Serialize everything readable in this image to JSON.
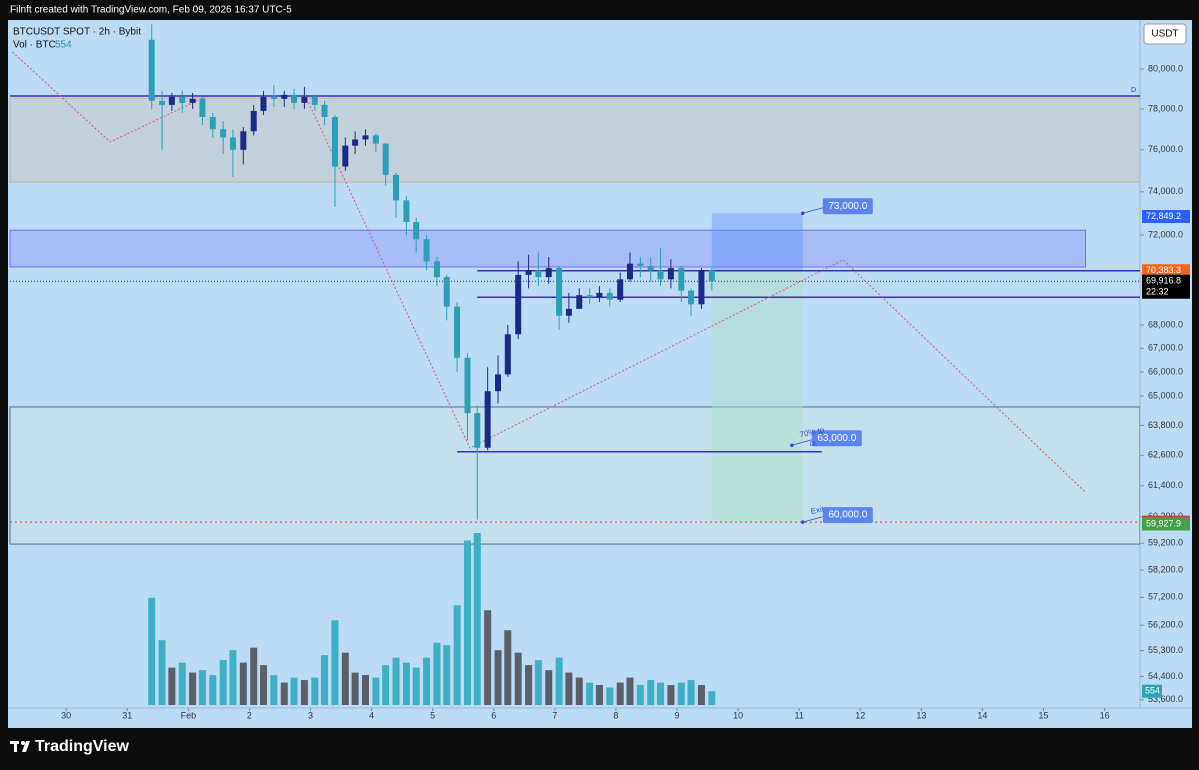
{
  "header": {
    "attribution": "Filnft created with TradingView.com, Feb 09, 2026 16:37 UTC-5",
    "symbol": "BTCUSDT SPOT · 2h · Bybit",
    "volume_label": "Vol · BTC",
    "currency": "USDT"
  },
  "footer": {
    "brand": "TradingView"
  },
  "chart_data": {
    "type": "candlestick",
    "log_scale": true,
    "xlim": [
      29.08,
      47.58
    ],
    "ylim": [
      53320,
      82530
    ],
    "xticks": [
      30,
      31,
      {
        "value": 32,
        "label": "Feb"
      },
      {
        "value": 33,
        "label": "2"
      },
      {
        "value": 34,
        "label": "3"
      },
      {
        "value": 35,
        "label": "4"
      },
      {
        "value": 36,
        "label": "5"
      },
      {
        "value": 37,
        "label": "6"
      },
      {
        "value": 38,
        "label": "7"
      },
      {
        "value": 39,
        "label": "8"
      },
      {
        "value": 40,
        "label": "9"
      },
      {
        "value": 41,
        "label": "10"
      },
      {
        "value": 42,
        "label": "11"
      },
      {
        "value": 43,
        "label": "12"
      },
      {
        "value": 44,
        "label": "13"
      },
      {
        "value": 45,
        "label": "14"
      },
      {
        "value": 46,
        "label": "15"
      },
      {
        "value": 47,
        "label": "16"
      }
    ],
    "yticks": [
      {
        "value": 80000,
        "label": "80,000.0"
      },
      {
        "value": 78000,
        "label": "78,000.0"
      },
      {
        "value": 76000,
        "label": "76,000.0"
      },
      {
        "value": 74000,
        "label": "74,000.0"
      },
      {
        "value": 72000,
        "label": "72,000.0"
      },
      {
        "value": 68000,
        "label": "68,000.0"
      },
      {
        "value": 67000,
        "label": "67,000.0"
      },
      {
        "value": 66000,
        "label": "66,000.0"
      },
      {
        "value": 65000,
        "label": "65,000.0"
      },
      {
        "value": 63800,
        "label": "63,800.0"
      },
      {
        "value": 62600,
        "label": "62,600.0"
      },
      {
        "value": 61400,
        "label": "61,400.0"
      },
      {
        "value": 60200,
        "label": "60,200.0"
      },
      {
        "value": 59200,
        "label": "59,200.0"
      },
      {
        "value": 58200,
        "label": "58,200.0"
      },
      {
        "value": 57200,
        "label": "57,200.0"
      },
      {
        "value": 56200,
        "label": "56,200.0"
      },
      {
        "value": 55300,
        "label": "55,300.0"
      },
      {
        "value": 54400,
        "label": "54,400.0"
      },
      {
        "value": 53600,
        "label": "53,600.0"
      }
    ],
    "up_color": "#1b2a86",
    "down_color": "#2a9fb5",
    "volume_up_color": "#5a5f68",
    "volume_down_color": "#3fb0c4",
    "x": [
      31.4,
      31.57,
      31.73,
      31.9,
      32.07,
      32.23,
      32.4,
      32.57,
      32.73,
      32.9,
      33.07,
      33.23,
      33.4,
      33.57,
      33.73,
      33.9,
      34.07,
      34.23,
      34.4,
      34.57,
      34.73,
      34.9,
      35.07,
      35.23,
      35.4,
      35.57,
      35.73,
      35.9,
      36.07,
      36.23,
      36.4,
      36.57,
      36.73,
      36.9,
      37.07,
      37.23,
      37.4,
      37.57,
      37.73,
      37.9,
      38.07,
      38.23,
      38.4,
      38.57,
      38.73,
      38.9,
      39.07,
      39.23,
      39.4,
      39.57,
      39.73,
      39.9,
      40.07,
      40.23,
      40.4,
      40.57
    ],
    "open": [
      81500,
      78400,
      78200,
      78600,
      78300,
      78500,
      77600,
      77000,
      76600,
      76000,
      76900,
      77900,
      78600,
      78500,
      78700,
      78300,
      78600,
      78200,
      77600,
      75200,
      76200,
      76500,
      76700,
      76300,
      74800,
      73600,
      72600,
      71800,
      70800,
      70100,
      68800,
      66600,
      64300,
      62900,
      65200,
      65900,
      67600,
      70200,
      70400,
      70100,
      70500,
      68400,
      68700,
      69300,
      69200,
      69400,
      69100,
      70000,
      70700,
      70600,
      70400,
      70000,
      70500,
      69500,
      68900,
      70400
    ],
    "high": [
      82300,
      78900,
      78800,
      78900,
      78800,
      78600,
      77800,
      77400,
      77000,
      77100,
      78200,
      78900,
      79200,
      78900,
      79000,
      79100,
      78700,
      78400,
      77700,
      76600,
      76900,
      77000,
      76800,
      76300,
      74900,
      73800,
      72800,
      72000,
      71000,
      70200,
      69000,
      66800,
      64600,
      66200,
      66700,
      68000,
      70800,
      71100,
      71200,
      71000,
      70600,
      69400,
      69600,
      69600,
      69700,
      69600,
      70300,
      71200,
      71000,
      71000,
      71400,
      70900,
      70600,
      69600,
      70500,
      70500
    ],
    "low": [
      78000,
      76000,
      77900,
      77800,
      78000,
      77200,
      76600,
      75800,
      74700,
      75300,
      76700,
      77700,
      78100,
      78100,
      78000,
      78000,
      77900,
      77200,
      73300,
      75000,
      75800,
      76200,
      75900,
      74300,
      72800,
      72000,
      71200,
      70400,
      69700,
      68200,
      66000,
      63200,
      60100,
      62800,
      64700,
      65800,
      67400,
      69600,
      69700,
      69800,
      67800,
      68100,
      68700,
      68900,
      69000,
      68800,
      69000,
      69900,
      70100,
      69900,
      69700,
      69600,
      69000,
      68400,
      68700,
      69500
    ],
    "close": [
      78400,
      78200,
      78600,
      78300,
      78500,
      77600,
      77000,
      76600,
      76000,
      76900,
      77900,
      78600,
      78500,
      78700,
      78300,
      78600,
      78200,
      77600,
      75200,
      76200,
      76500,
      76700,
      76300,
      74800,
      73600,
      72600,
      71800,
      70800,
      70100,
      68800,
      66600,
      64300,
      62900,
      65200,
      65900,
      67600,
      70200,
      70400,
      70100,
      70500,
      68400,
      68700,
      69300,
      69200,
      69400,
      69100,
      70000,
      70700,
      70600,
      70400,
      70000,
      70500,
      69500,
      68900,
      70400,
      69916.8
    ],
    "volume": [
      4300,
      2600,
      1500,
      1700,
      1300,
      1400,
      1200,
      1800,
      2200,
      1700,
      2300,
      1600,
      1200,
      900,
      1100,
      1000,
      1100,
      2000,
      3400,
      2100,
      1300,
      1200,
      1100,
      1600,
      1900,
      1700,
      1500,
      1900,
      2500,
      2400,
      4000,
      6600,
      6900,
      3800,
      2200,
      3000,
      2100,
      1600,
      1800,
      1400,
      1900,
      1300,
      1100,
      900,
      800,
      700,
      900,
      1100,
      800,
      1000,
      900,
      800,
      900,
      1000,
      800,
      554
    ],
    "zones": [
      {
        "from": 78540,
        "to": 74460,
        "x": [
          29.08,
          47.58
        ],
        "color": "rgba(200,200,200,0.55)",
        "border": "#d2a877"
      },
      {
        "from": 72220,
        "to": 70550,
        "x": [
          29.08,
          46.69
        ],
        "color": "rgba(125,125,250,0.35)",
        "border": "#6b5fd8"
      },
      {
        "from": 64550,
        "to": 59170,
        "x": [
          29.08,
          47.58
        ],
        "color": "rgba(215,235,215,0.3)",
        "border": "#4a4f5a"
      }
    ],
    "levels": [
      {
        "value": 78640,
        "x": [
          29.08,
          47.58
        ],
        "color": "#3f2bb5",
        "label": "D"
      },
      {
        "value": 70383.3,
        "x": [
          36.73,
          47.58
        ],
        "color": "#3f2bb5"
      },
      {
        "value": 69210,
        "x": [
          36.73,
          47.58
        ],
        "color": "#3f2bb5"
      },
      {
        "value": 62740,
        "x": [
          36.4,
          42.37
        ],
        "color": "#3f2bb5"
      }
    ],
    "paths": [
      {
        "x": [
          29.12,
          30.72,
          32.27
        ],
        "y": [
          80870,
          76380,
          78590
        ]
      },
      {
        "x": [
          33.91,
          36.61,
          42.72,
          46.68
        ],
        "y": [
          78690,
          62890,
          70870,
          61160
        ]
      }
    ],
    "position": {
      "x": [
        40.57,
        42.06
      ],
      "top": 73000,
      "entry": 70383.3,
      "bottom": 60000
    },
    "annotations": [
      {
        "x": 42.06,
        "value": 73000,
        "label": "73,000.0"
      },
      {
        "x": 41.88,
        "value": 63000,
        "label": "63,000.0",
        "note": "70% tp",
        "sub": "DL"
      },
      {
        "x": 42.06,
        "value": 60000,
        "label": "60,000.0",
        "note": "Exit"
      }
    ],
    "price_labels": [
      {
        "value": 72849.2,
        "label": "72,849.2",
        "color": "#2962ff"
      },
      {
        "value": 70383.3,
        "label": "70,383.3",
        "color": "#f0661c"
      },
      {
        "value": 69916.8,
        "label": "69,916.8",
        "color": "#000000",
        "sub": "22:32"
      },
      {
        "value": 60000,
        "label": "60,000.0",
        "color": "#e53935"
      },
      {
        "value": 59927.9,
        "label": "59,927.9",
        "color": "#43a047"
      }
    ]
  }
}
